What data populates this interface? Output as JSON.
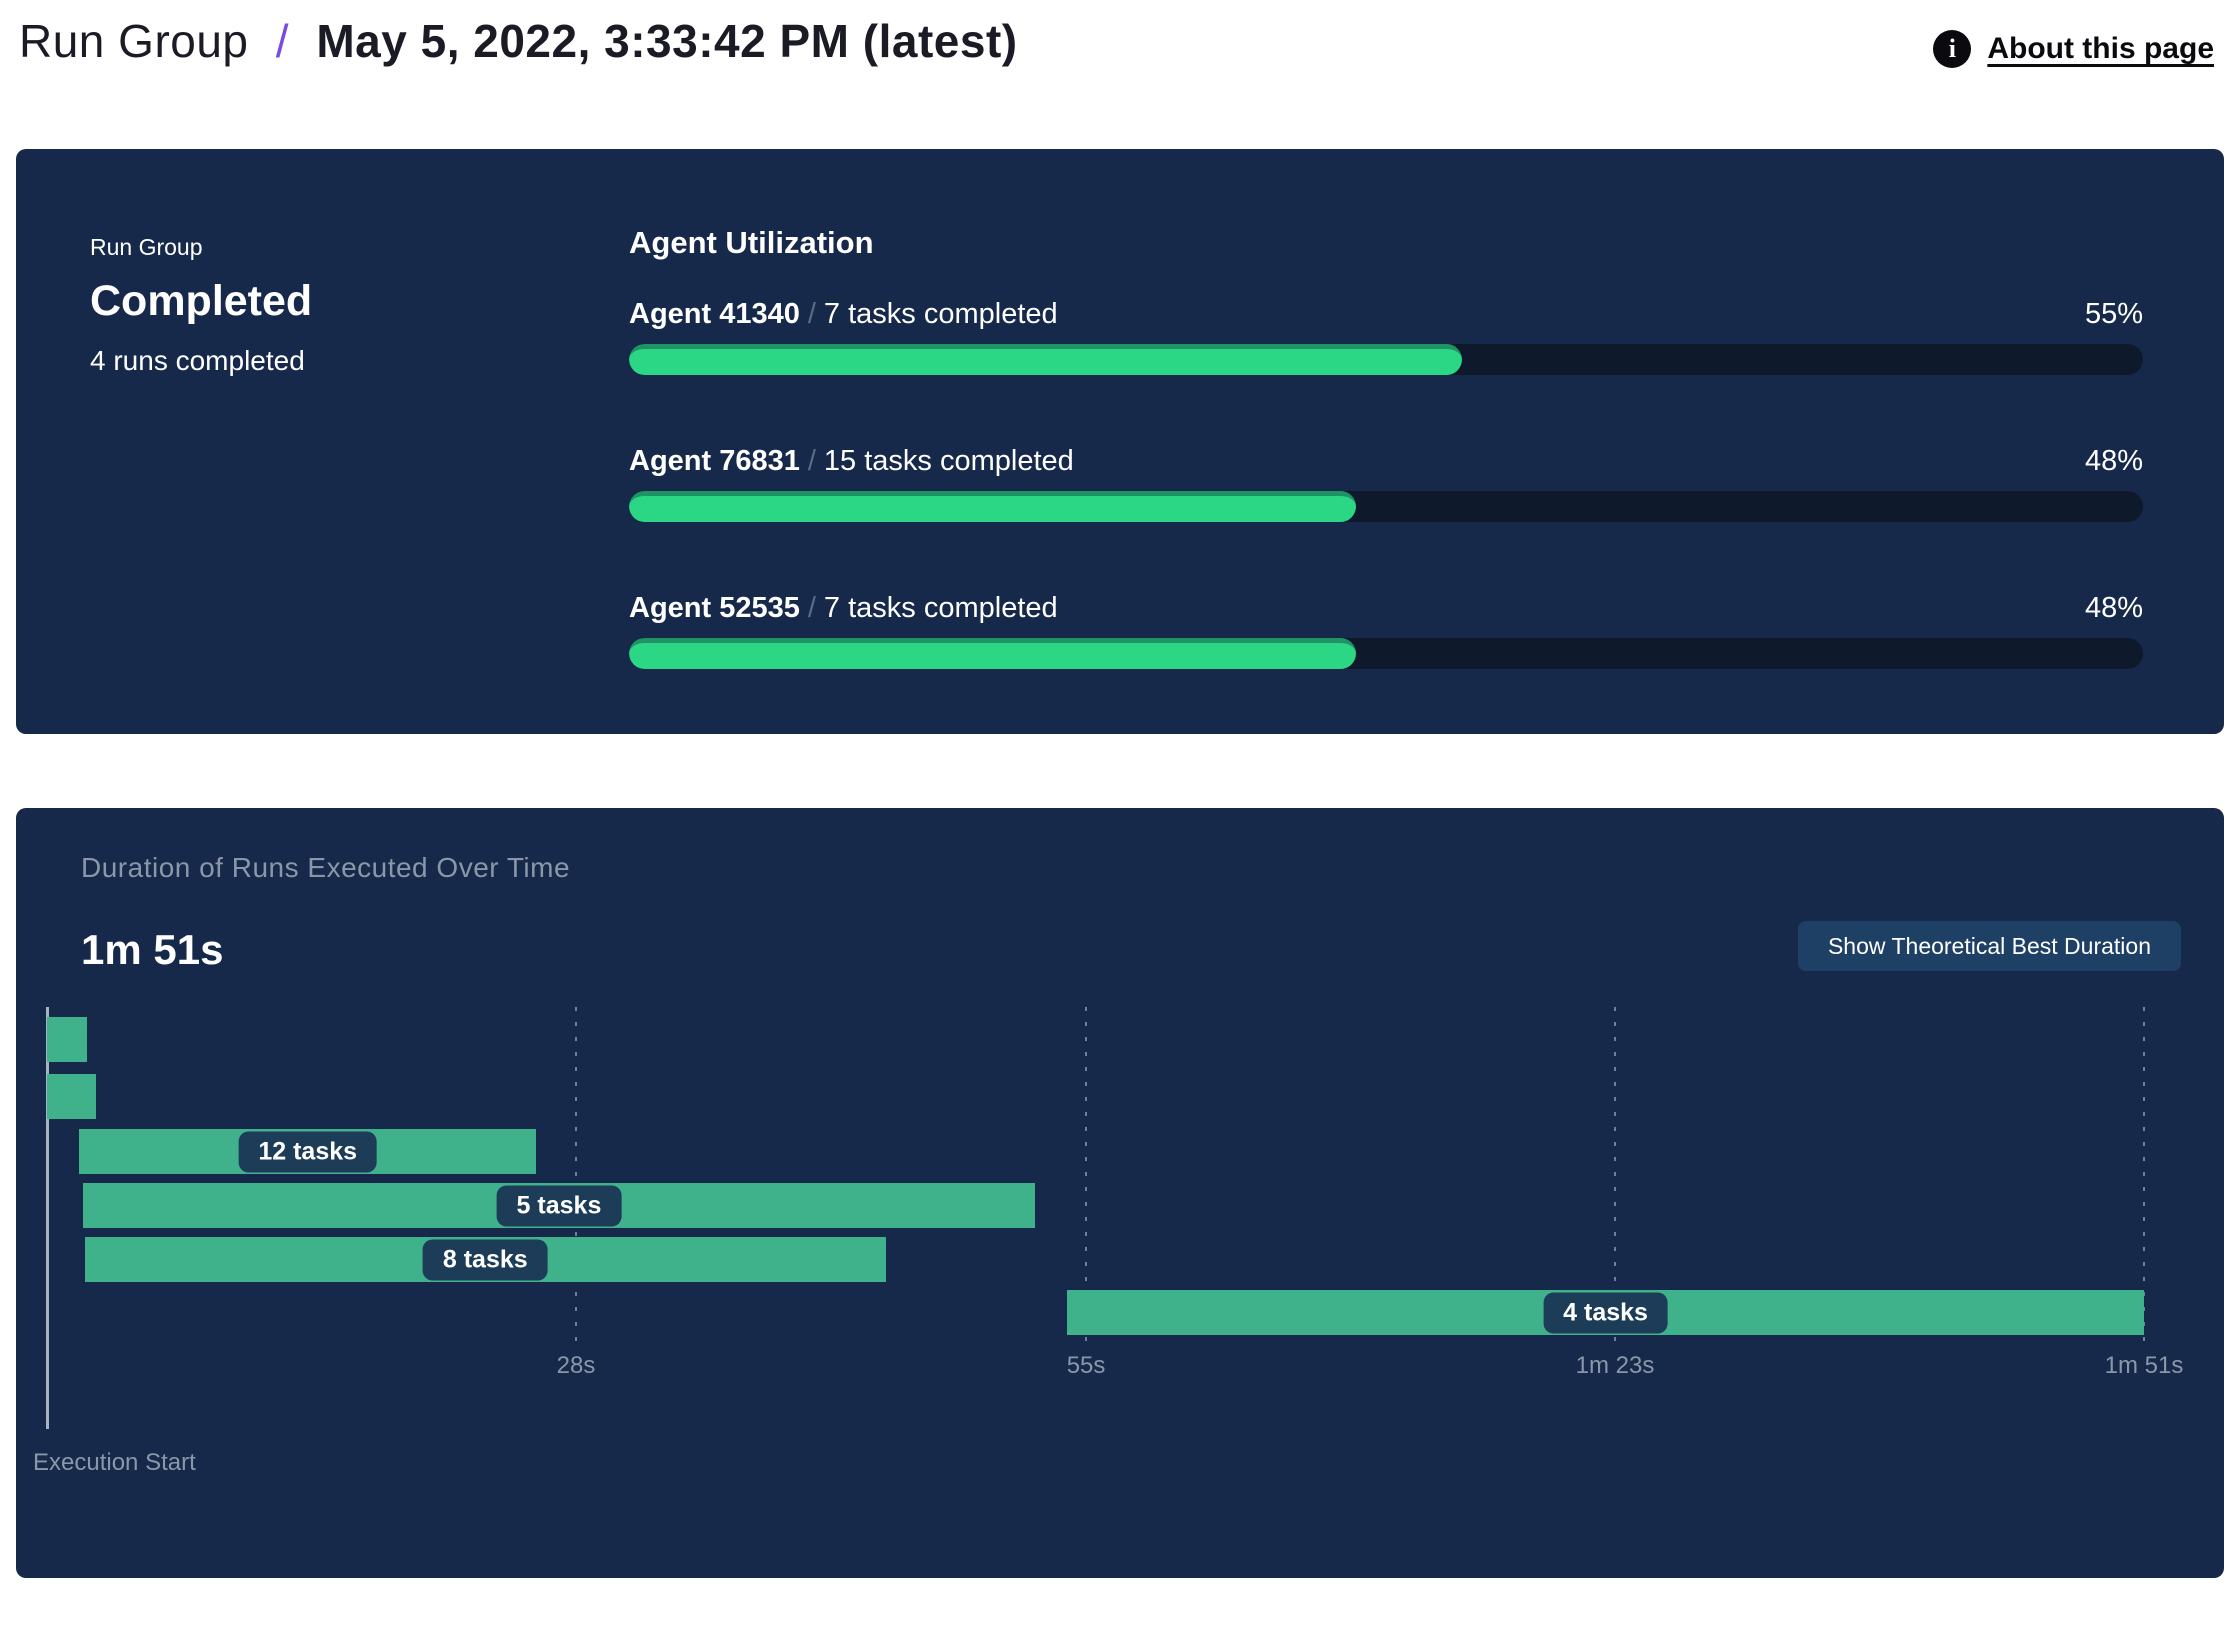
{
  "header": {
    "breadcrumb_root": "Run Group",
    "separator": "/",
    "title": "May 5, 2022, 3:33:42 PM (latest)",
    "info_icon_glyph": "i",
    "about_link": "About this page"
  },
  "status_card": {
    "label": "Run Group",
    "status": "Completed",
    "runs_completed": "4 runs completed"
  },
  "utilization": {
    "heading": "Agent Utilization",
    "agents": [
      {
        "name": "Agent 41340",
        "separator": "/",
        "tasks": "7 tasks completed",
        "percent": 55,
        "percent_label": "55%"
      },
      {
        "name": "Agent 76831",
        "separator": "/",
        "tasks": "15 tasks completed",
        "percent": 48,
        "percent_label": "48%"
      },
      {
        "name": "Agent 52535",
        "separator": "/",
        "tasks": "7 tasks completed",
        "percent": 48,
        "percent_label": "48%"
      }
    ]
  },
  "duration_panel": {
    "subtitle": "Duration of Runs Executed Over Time",
    "total_duration": "1m 51s",
    "button_label": "Show Theoretical Best Duration",
    "axis_label": "Execution Start"
  },
  "chart_data": {
    "type": "gantt",
    "title": "Duration of Runs Executed Over Time",
    "total_duration_label": "1m 51s",
    "x_range_s": [
      0,
      111
    ],
    "x_ticks": [
      {
        "label": "28s",
        "t": 28
      },
      {
        "label": "55s",
        "t": 55
      },
      {
        "label": "1m 23s",
        "t": 83
      },
      {
        "label": "1m 51s",
        "t": 111
      }
    ],
    "bars": [
      {
        "label": "",
        "tasks": null,
        "start_s": 0,
        "end_s": 2.1
      },
      {
        "label": "",
        "tasks": null,
        "start_s": 0,
        "end_s": 2.6
      },
      {
        "label": "12 tasks",
        "tasks": 12,
        "start_s": 1.7,
        "end_s": 25.9
      },
      {
        "label": "5 tasks",
        "tasks": 5,
        "start_s": 1.9,
        "end_s": 52.3
      },
      {
        "label": "8 tasks",
        "tasks": 8,
        "start_s": 2.0,
        "end_s": 44.4
      },
      {
        "label": "4 tasks",
        "tasks": 4,
        "start_s": 54.0,
        "end_s": 111.0
      }
    ],
    "legend": "none",
    "grid": "vertical-dashed"
  },
  "colors": {
    "panel_navy": "#16294a",
    "progress_green": "#2bd785",
    "progress_green_edge": "#1f9363",
    "gantt_green": "#3fb28c",
    "track_dark": "#0e1a2b",
    "pill_navy": "#1d3c58",
    "button_navy": "#1e4065",
    "accent_purple": "#7a4be0",
    "muted_text": "#8a97a8"
  }
}
